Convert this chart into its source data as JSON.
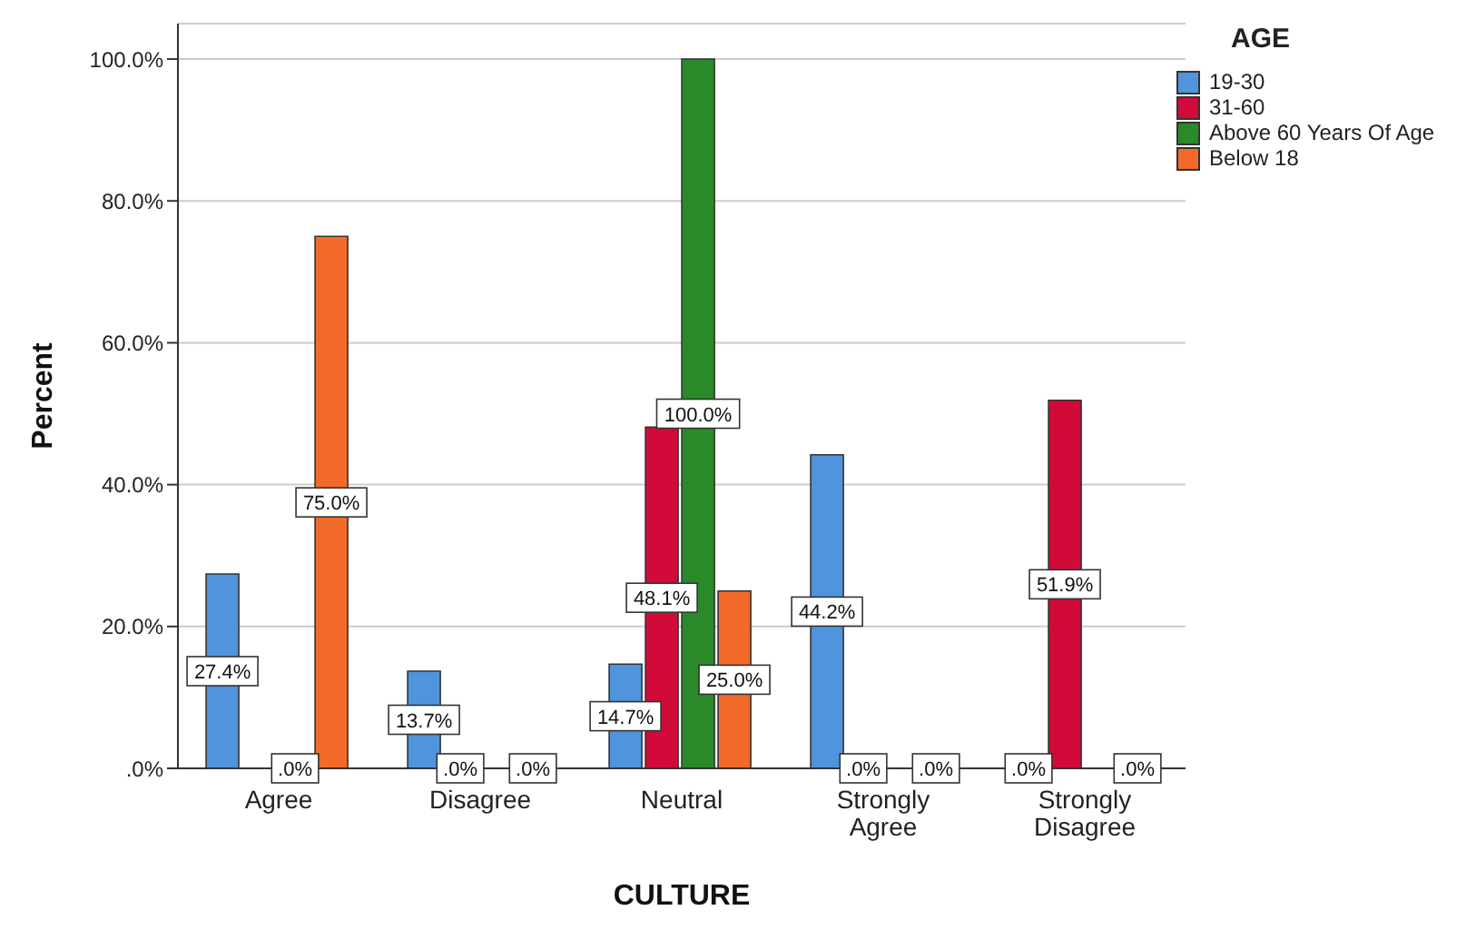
{
  "chart_data": {
    "type": "bar",
    "xlabel": "CULTURE",
    "ylabel": "Percent",
    "legend_title": "AGE",
    "categories": [
      "Agree",
      "Disagree",
      "Neutral",
      "Strongly Agree",
      "Strongly Disagree"
    ],
    "series": [
      {
        "name": "19-30",
        "color": "#4f94dc",
        "values": [
          27.4,
          13.7,
          14.7,
          44.2,
          0
        ],
        "value_labels": [
          "27.4%",
          "13.7%",
          "14.7%",
          "44.2%",
          ".0%"
        ]
      },
      {
        "name": "31-60",
        "color": "#d10a3a",
        "values": [
          null,
          0,
          48.1,
          0,
          51.9
        ],
        "value_labels": [
          null,
          ".0%",
          "48.1%",
          ".0%",
          "51.9%"
        ]
      },
      {
        "name": "Above 60 Years Of Age",
        "color": "#2a8a2a",
        "values": [
          0,
          null,
          100,
          null,
          null
        ],
        "value_labels": [
          ".0%",
          null,
          "100.0%",
          null,
          null
        ]
      },
      {
        "name": "Below 18",
        "color": "#f26a2a",
        "values": [
          75,
          0,
          25,
          0,
          0
        ],
        "value_labels": [
          "75.0%",
          ".0%",
          "25.0%",
          ".0%",
          ".0%"
        ]
      }
    ],
    "ylim": [
      0,
      105
    ],
    "yticks": [
      {
        "value": 0,
        "label": ".0%"
      },
      {
        "value": 20,
        "label": "20.0%"
      },
      {
        "value": 40,
        "label": "40.0%"
      },
      {
        "value": 60,
        "label": "60.0%"
      },
      {
        "value": 80,
        "label": "80.0%"
      },
      {
        "value": 100,
        "label": "100.0%"
      }
    ],
    "grid": "y",
    "legend": "top right"
  }
}
